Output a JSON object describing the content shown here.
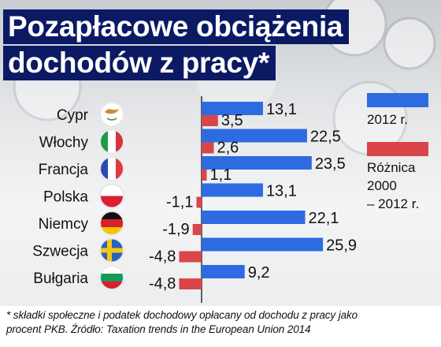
{
  "title_line1": "Pozapłacowe obciążenia",
  "title_line2": "dochodów z pracy*",
  "legend": [
    {
      "label": "2012 r.",
      "color": "#2e6be0"
    },
    {
      "label_lines": [
        "Różnica",
        "2000",
        "– 2012 r."
      ],
      "color": "#d9464a"
    }
  ],
  "footnote_line1": "* składki społeczne i podatek dochodowy opłacany od dochodu z pracy jako",
  "footnote_line2": "procent PKB. Źródło: Taxation trends in the European Union 2014",
  "chart_data": {
    "type": "bar",
    "orientation": "horizontal",
    "categories": [
      "Cypr",
      "Włochy",
      "Francja",
      "Polska",
      "Niemcy",
      "Szwecja",
      "Bułgaria"
    ],
    "series": [
      {
        "name": "2012 r.",
        "color": "#2e6be0",
        "values": [
          13.1,
          22.5,
          23.5,
          13.1,
          22.1,
          25.9,
          9.2
        ],
        "labels": [
          "13,1",
          "22,5",
          "23,5",
          "13,1",
          "22,1",
          "25,9",
          "9,2"
        ]
      },
      {
        "name": "Różnica 2000 – 2012 r.",
        "color": "#d9464a",
        "values": [
          3.5,
          2.6,
          1.1,
          -1.1,
          -1.9,
          -4.8,
          -4.8
        ],
        "labels": [
          "3,5",
          "2,6",
          "1,1",
          "-1,1",
          "-1,9",
          "-4,8",
          "-4,8"
        ]
      }
    ],
    "flag_icons": [
      "cyprus-flag-icon",
      "italy-flag-icon",
      "france-flag-icon",
      "poland-flag-icon",
      "germany-flag-icon",
      "sweden-flag-icon",
      "bulgaria-flag-icon"
    ]
  }
}
